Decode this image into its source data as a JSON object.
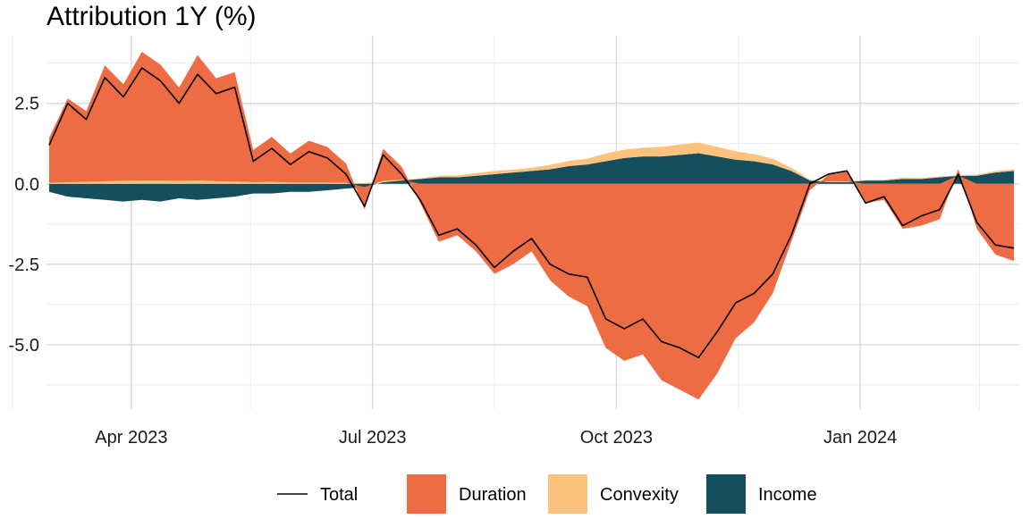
{
  "chart_data": {
    "type": "area",
    "title": "Attribution 1Y (%)",
    "xlabel": "",
    "ylabel": "",
    "x_range": [
      "2023-02-28",
      "2024-03-01"
    ],
    "ylim": [
      -7.0,
      4.6
    ],
    "y_ticks": [
      {
        "value": 2.5,
        "label": "2.5"
      },
      {
        "value": 0.0,
        "label": "0.0"
      },
      {
        "value": -2.5,
        "label": "-2.5"
      },
      {
        "value": -5.0,
        "label": "-5.0"
      }
    ],
    "y_minor_ticks": [
      3.75,
      1.25,
      -1.25,
      -3.75,
      -6.25
    ],
    "x_ticks": [
      {
        "value": "2023-04-01",
        "label": "Apr 2023"
      },
      {
        "value": "2023-07-01",
        "label": "Jul 2023"
      },
      {
        "value": "2023-10-01",
        "label": "Oct 2023"
      },
      {
        "value": "2024-01-01",
        "label": "Jan 2024"
      }
    ],
    "x_minor_ticks": [
      "2023-02-15",
      "2023-05-16",
      "2023-08-16",
      "2023-11-16",
      "2024-02-15"
    ],
    "grid": true,
    "legend_position": "bottom",
    "dates": [
      "2023-03-01",
      "2023-03-08",
      "2023-03-15",
      "2023-03-22",
      "2023-03-29",
      "2023-04-05",
      "2023-04-12",
      "2023-04-19",
      "2023-04-26",
      "2023-05-03",
      "2023-05-10",
      "2023-05-17",
      "2023-05-24",
      "2023-05-31",
      "2023-06-07",
      "2023-06-14",
      "2023-06-21",
      "2023-06-28",
      "2023-07-05",
      "2023-07-12",
      "2023-07-19",
      "2023-07-26",
      "2023-08-02",
      "2023-08-09",
      "2023-08-16",
      "2023-08-23",
      "2023-08-30",
      "2023-09-06",
      "2023-09-13",
      "2023-09-20",
      "2023-09-27",
      "2023-10-04",
      "2023-10-11",
      "2023-10-18",
      "2023-10-25",
      "2023-11-01",
      "2023-11-08",
      "2023-11-15",
      "2023-11-22",
      "2023-11-29",
      "2023-12-06",
      "2023-12-13",
      "2023-12-20",
      "2023-12-27",
      "2024-01-03",
      "2024-01-10",
      "2024-01-17",
      "2024-01-24",
      "2024-01-31",
      "2024-02-07",
      "2024-02-14",
      "2024-02-21",
      "2024-02-28"
    ],
    "series": [
      {
        "name": "Total",
        "kind": "line",
        "color": "#000000",
        "values": [
          1.2,
          2.5,
          2.0,
          3.3,
          2.7,
          3.6,
          3.2,
          2.5,
          3.4,
          2.8,
          3.0,
          0.7,
          1.1,
          0.6,
          1.0,
          0.8,
          0.3,
          -0.7,
          0.9,
          0.3,
          -0.5,
          -1.6,
          -1.4,
          -1.9,
          -2.6,
          -2.1,
          -1.7,
          -2.5,
          -2.8,
          -2.9,
          -4.2,
          -4.5,
          -4.2,
          -4.9,
          -5.1,
          -5.4,
          -4.6,
          -3.7,
          -3.4,
          -2.8,
          -1.6,
          0.0,
          0.3,
          0.4,
          -0.6,
          -0.4,
          -1.3,
          -1.0,
          -0.8,
          0.3,
          -1.2,
          -1.9,
          -2.0
        ]
      },
      {
        "name": "Duration",
        "kind": "area",
        "color": "#EE6C44",
        "values": [
          1.4,
          2.6,
          2.2,
          3.6,
          3.0,
          4.0,
          3.6,
          2.9,
          3.9,
          3.2,
          3.4,
          1.0,
          1.4,
          0.9,
          1.3,
          1.1,
          0.6,
          -0.7,
          1.0,
          0.4,
          -0.6,
          -1.8,
          -1.6,
          -2.1,
          -2.8,
          -2.5,
          -2.1,
          -3.0,
          -3.5,
          -3.8,
          -5.1,
          -5.5,
          -5.3,
          -6.1,
          -6.4,
          -6.7,
          -5.9,
          -4.8,
          -4.3,
          -3.4,
          -1.8,
          -0.2,
          0.2,
          0.3,
          -0.6,
          -0.5,
          -1.4,
          -1.3,
          -1.1,
          0.2,
          -1.4,
          -2.2,
          -2.4
        ]
      },
      {
        "name": "Convexity",
        "kind": "area",
        "color": "#FDC37E",
        "values": [
          0.03,
          0.05,
          0.06,
          0.08,
          0.09,
          0.1,
          0.1,
          0.09,
          0.1,
          0.08,
          0.07,
          0.05,
          0.06,
          0.04,
          0.04,
          0.04,
          0.03,
          0.02,
          0.04,
          0.03,
          0.02,
          0.05,
          0.06,
          0.08,
          0.1,
          0.09,
          0.1,
          0.14,
          0.16,
          0.18,
          0.24,
          0.26,
          0.27,
          0.3,
          0.32,
          0.33,
          0.3,
          0.26,
          0.22,
          0.18,
          0.1,
          0.03,
          0.03,
          0.02,
          0.02,
          0.02,
          0.04,
          0.03,
          0.03,
          0.01,
          0.03,
          0.05,
          0.05
        ]
      },
      {
        "name": "Income",
        "kind": "area",
        "color": "#154E5C",
        "values": [
          -0.25,
          -0.4,
          -0.45,
          -0.5,
          -0.55,
          -0.5,
          -0.55,
          -0.45,
          -0.5,
          -0.45,
          -0.4,
          -0.3,
          -0.3,
          -0.25,
          -0.25,
          -0.2,
          -0.15,
          -0.1,
          0.05,
          0.1,
          0.15,
          0.2,
          0.2,
          0.25,
          0.3,
          0.35,
          0.4,
          0.45,
          0.55,
          0.6,
          0.7,
          0.8,
          0.85,
          0.85,
          0.9,
          0.95,
          0.85,
          0.75,
          0.7,
          0.6,
          0.4,
          0.1,
          0.05,
          0.05,
          0.1,
          0.1,
          0.15,
          0.15,
          0.2,
          0.25,
          0.25,
          0.35,
          0.4
        ]
      }
    ]
  }
}
